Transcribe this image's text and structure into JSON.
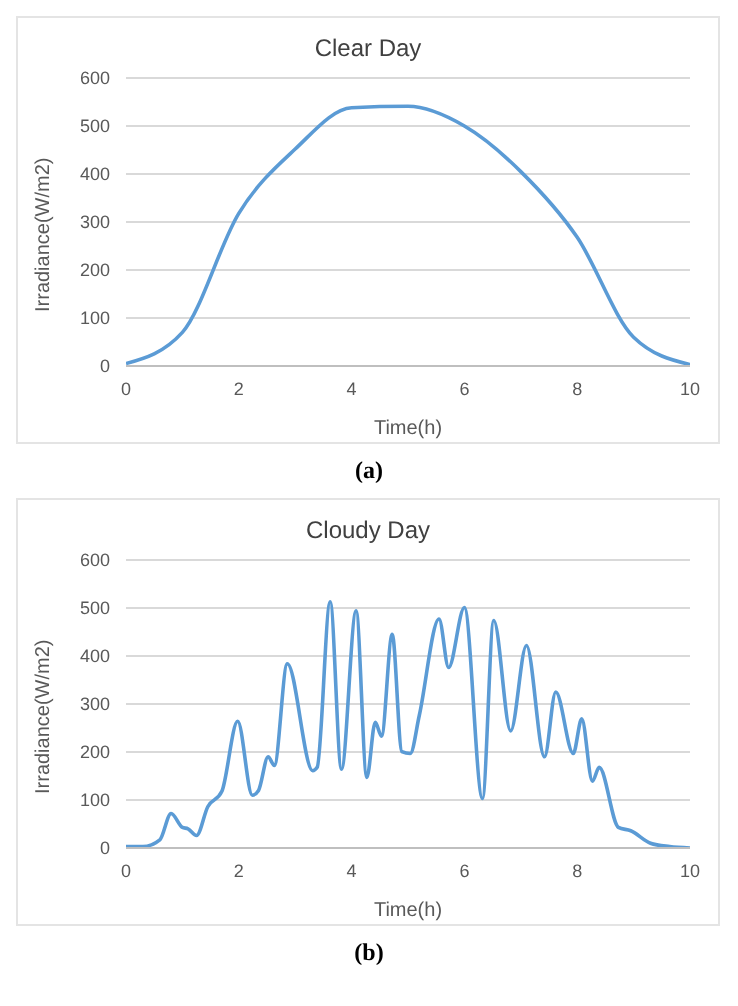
{
  "chart_data": [
    {
      "type": "line",
      "title": "Clear Day",
      "xlabel": "Time(h)",
      "ylabel": "Irradiance(W/m2)",
      "annotations": [
        "(a)"
      ],
      "x": [
        0,
        1,
        2,
        3,
        4,
        5,
        6,
        7,
        8,
        9,
        10
      ],
      "series": [
        {
          "color": "#5b9bd5",
          "values": [
            5,
            70,
            318,
            452,
            538,
            541,
            500,
            405,
            268,
            60,
            3
          ]
        }
      ],
      "xlim": [
        0,
        10
      ],
      "xticks": [
        0,
        2,
        4,
        6,
        8,
        10
      ],
      "ylim": [
        0,
        600
      ],
      "yticks": [
        0,
        100,
        200,
        300,
        400,
        500,
        600
      ],
      "grid": "y",
      "legend": false,
      "marker": "none"
    },
    {
      "type": "line",
      "title": "Cloudy Day",
      "xlabel": "Time(h)",
      "ylabel": "Irradiance(W/m2)",
      "annotations": [
        "(b)"
      ],
      "x": [
        0,
        0.3,
        0.6,
        0.8,
        1.0,
        1.1,
        1.25,
        1.45,
        1.7,
        1.98,
        2.24,
        2.35,
        2.52,
        2.63,
        2.86,
        3.31,
        3.39,
        3.62,
        3.82,
        4.08,
        4.27,
        4.42,
        4.53,
        4.72,
        4.89,
        5.04,
        5.2,
        5.55,
        5.72,
        6.0,
        6.32,
        6.52,
        6.82,
        7.1,
        7.42,
        7.62,
        7.93,
        8.08,
        8.27,
        8.39,
        8.73,
        8.95,
        9.3,
        9.64,
        10
      ],
      "series": [
        {
          "color": "#5b9bd5",
          "values": [
            3,
            3,
            17,
            72,
            43,
            40,
            26,
            86,
            118,
            264,
            110,
            120,
            190,
            172,
            384,
            161,
            168,
            513,
            164,
            494,
            147,
            262,
            233,
            445,
            201,
            197,
            276,
            477,
            376,
            501,
            103,
            474,
            244,
            422,
            190,
            325,
            197,
            269,
            139,
            168,
            43,
            36,
            10,
            3,
            0
          ]
        }
      ],
      "xlim": [
        0,
        10
      ],
      "xticks": [
        0,
        2,
        4,
        6,
        8,
        10
      ],
      "ylim": [
        0,
        600
      ],
      "yticks": [
        0,
        100,
        200,
        300,
        400,
        500,
        600
      ],
      "grid": "y",
      "legend": false,
      "marker": "none"
    }
  ]
}
